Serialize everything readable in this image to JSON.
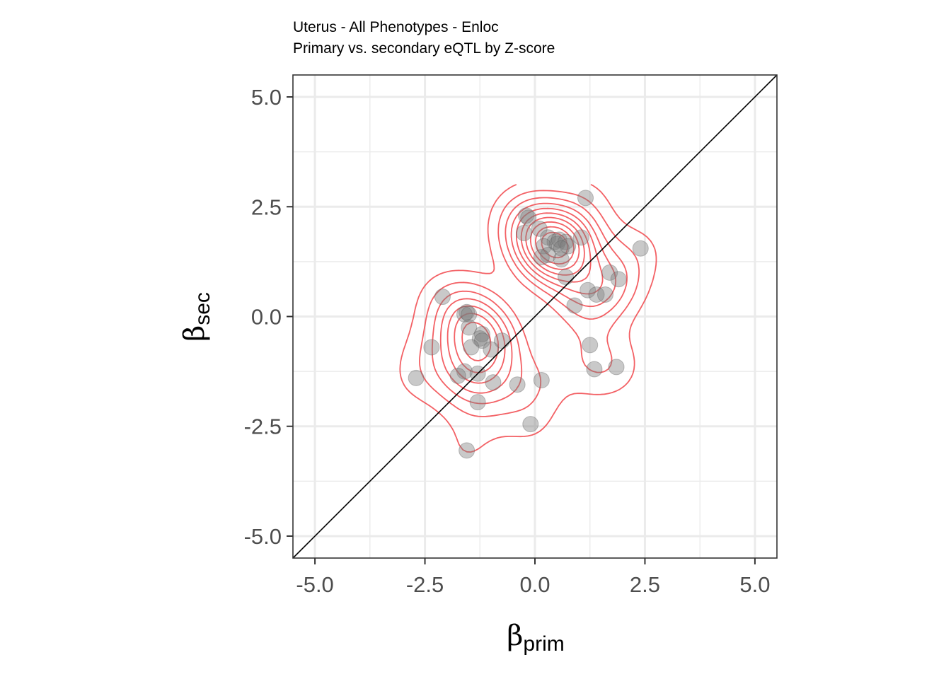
{
  "chart_data": {
    "type": "scatter",
    "title": "Uterus - All Phenotypes - Enloc",
    "subtitle": "Primary vs. secondary eQTL by Z-score",
    "xlabel": {
      "symbol": "β",
      "subscript": "prim"
    },
    "ylabel": {
      "symbol": "β",
      "subscript": "sec"
    },
    "xlim": [
      -5.5,
      5.5
    ],
    "ylim": [
      -5.5,
      5.5
    ],
    "x_ticks": [
      -5.0,
      -2.5,
      0.0,
      2.5,
      5.0
    ],
    "y_ticks": [
      -5.0,
      -2.5,
      0.0,
      2.5,
      5.0
    ],
    "x_tick_labels": [
      "-5.0",
      "-2.5",
      "0.0",
      "2.5",
      "5.0"
    ],
    "y_tick_labels": [
      "-5.0",
      "-2.5",
      "0.0",
      "2.5",
      "5.0"
    ],
    "grid": true,
    "reference_line": {
      "type": "identity",
      "slope": 1,
      "intercept": 0
    },
    "density_contours": true,
    "colors": {
      "points": "#7f7f7f",
      "contour": "#f0393f",
      "grid": "#ebebeb",
      "panel_border": "#333333",
      "reference_line": "#000000"
    },
    "series": [
      {
        "points": [
          [
            1.15,
            2.7
          ],
          [
            -0.2,
            2.3
          ],
          [
            -0.15,
            2.25
          ],
          [
            0.1,
            2.0
          ],
          [
            -0.25,
            1.9
          ],
          [
            0.3,
            1.8
          ],
          [
            0.45,
            1.7
          ],
          [
            0.5,
            1.65
          ],
          [
            0.55,
            1.75
          ],
          [
            0.7,
            1.7
          ],
          [
            0.75,
            1.6
          ],
          [
            0.6,
            1.55
          ],
          [
            0.2,
            1.6
          ],
          [
            1.05,
            1.8
          ],
          [
            0.3,
            1.4
          ],
          [
            0.15,
            1.35
          ],
          [
            0.6,
            1.3
          ],
          [
            2.4,
            1.55
          ],
          [
            1.7,
            1.0
          ],
          [
            1.9,
            0.85
          ],
          [
            0.7,
            0.9
          ],
          [
            1.2,
            0.6
          ],
          [
            1.4,
            0.5
          ],
          [
            1.6,
            0.5
          ],
          [
            0.9,
            0.25
          ],
          [
            1.25,
            -0.65
          ],
          [
            1.35,
            -1.2
          ],
          [
            1.85,
            -1.15
          ],
          [
            -2.1,
            0.45
          ],
          [
            -1.55,
            0.1
          ],
          [
            -1.6,
            0.05
          ],
          [
            -1.5,
            0.05
          ],
          [
            -1.5,
            -0.25
          ],
          [
            -1.2,
            -0.4
          ],
          [
            -1.25,
            -0.5
          ],
          [
            -1.2,
            -0.55
          ],
          [
            -0.75,
            -0.55
          ],
          [
            -1.0,
            -0.75
          ],
          [
            -1.45,
            -0.7
          ],
          [
            -2.35,
            -0.7
          ],
          [
            -1.6,
            -1.25
          ],
          [
            -1.75,
            -1.35
          ],
          [
            -1.3,
            -1.3
          ],
          [
            -2.7,
            -1.4
          ],
          [
            -0.95,
            -1.5
          ],
          [
            -0.4,
            -1.55
          ],
          [
            0.15,
            -1.45
          ],
          [
            -1.3,
            -1.95
          ],
          [
            -0.1,
            -2.45
          ],
          [
            -1.55,
            -3.05
          ]
        ]
      }
    ]
  }
}
